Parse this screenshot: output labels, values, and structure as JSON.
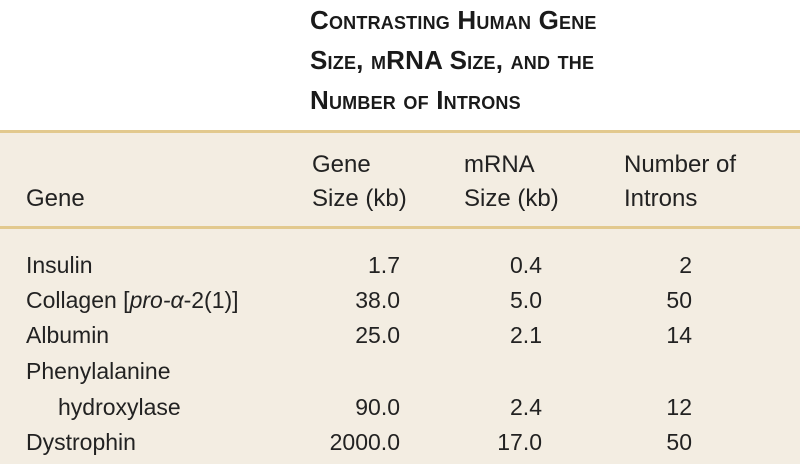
{
  "title": {
    "line1": "Contrasting Human Gene",
    "line2": "Size, mRNA Size, and the",
    "line3": "Number of Introns"
  },
  "table": {
    "headers": {
      "gene": "Gene",
      "gene_size_1": "Gene",
      "gene_size_2": "Size (kb)",
      "mrna_size_1": "mRNA",
      "mrna_size_2": "Size (kb)",
      "introns_1": "Number of",
      "introns_2": "Introns"
    },
    "rows": [
      {
        "gene": "Insulin",
        "gene_size": "1.7",
        "mrna_size": "0.4",
        "introns": "2"
      },
      {
        "gene_prefix": "Collagen [",
        "gene_italic": "pro-α",
        "gene_suffix": "-2(1)]",
        "gene_size": "38.0",
        "mrna_size": "5.0",
        "introns": "50"
      },
      {
        "gene": "Albumin",
        "gene_size": "25.0",
        "mrna_size": "2.1",
        "introns": "14"
      },
      {
        "gene_line1": "Phenylalanine",
        "gene_line2": "hydroxylase",
        "gene_size": "90.0",
        "mrna_size": "2.4",
        "introns": "12"
      },
      {
        "gene": "Dystrophin",
        "gene_size": "2000.0",
        "mrna_size": "17.0",
        "introns": "50"
      }
    ]
  }
}
